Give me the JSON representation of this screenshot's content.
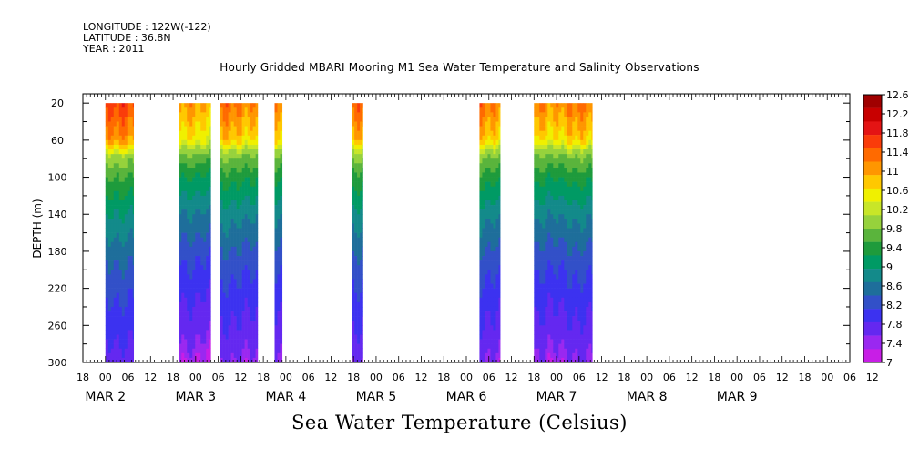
{
  "header": {
    "lines": [
      "LONGITUDE : 122W(-122)",
      "LATITUDE : 36.8N",
      "YEAR : 2011"
    ],
    "title": "Hourly Gridded MBARI Mooring M1 Sea Water Temperature and Salinity Observations"
  },
  "chart_data": {
    "type": "heatmap",
    "title": "Hourly Gridded MBARI Mooring M1 Sea Water Temperature and Salinity Observations",
    "xlabel": "",
    "ylabel": "DEPTH (m)",
    "colorbar_label": "Sea Water Temperature (Celsius)",
    "x_unit": "hours since 2011-03-01 18:00",
    "xlim": [
      0,
      204
    ],
    "ylim": [
      300,
      10
    ],
    "y_ticks": [
      20,
      60,
      100,
      140,
      180,
      220,
      260,
      300
    ],
    "x_hour_labels": [
      "18",
      "00",
      "06",
      "12",
      "18",
      "00",
      "06",
      "12",
      "18",
      "00",
      "06",
      "12",
      "18",
      "00",
      "06",
      "12",
      "18",
      "00",
      "06",
      "12",
      "18",
      "00",
      "06",
      "12",
      "18",
      "00",
      "06",
      "12",
      "18",
      "00",
      "06",
      "12",
      "18",
      "00",
      "06",
      "12"
    ],
    "x_day_labels": [
      {
        "hour": 6,
        "text": "MAR  2"
      },
      {
        "hour": 30,
        "text": "MAR  3"
      },
      {
        "hour": 54,
        "text": "MAR  4"
      },
      {
        "hour": 78,
        "text": "MAR  5"
      },
      {
        "hour": 102,
        "text": "MAR  6"
      },
      {
        "hour": 126,
        "text": "MAR  7"
      },
      {
        "hour": 150,
        "text": "MAR  8"
      },
      {
        "hour": 174,
        "text": "MAR  9"
      }
    ],
    "colorbar_levels": [
      "12.6",
      "12.2",
      "11.8",
      "11.4",
      "11",
      "10.6",
      "10.2",
      "9.8",
      "9.4",
      "9",
      "8.6",
      "8.2",
      "7.8",
      "7.4",
      "7"
    ],
    "colorbar_colors": [
      "#a00000",
      "#c80000",
      "#e41414",
      "#fa3c0a",
      "#ff6a00",
      "#ff9600",
      "#ffc800",
      "#f0f000",
      "#c8e628",
      "#96d23c",
      "#5ab43c",
      "#1e9b3c",
      "#009a64",
      "#138a8a",
      "#1e6e9b",
      "#3250c8",
      "#3c32f0",
      "#6428f0",
      "#9a28f0",
      "#c81ee6"
    ],
    "color_levels_celsius": [
      12.6,
      12.4,
      12.2,
      12.0,
      11.8,
      11.6,
      11.4,
      11.2,
      11.0,
      10.6,
      10.2,
      9.8,
      9.4,
      9.0,
      8.6,
      8.2,
      7.8,
      7.4,
      7.2,
      7.0
    ],
    "temperature_profile": {
      "depths": [
        20,
        40,
        60,
        70,
        80,
        100,
        120,
        140,
        160,
        180,
        200,
        220,
        240,
        260,
        280,
        300
      ],
      "temps": [
        11.8,
        11.6,
        11.4,
        11.0,
        10.5,
        9.9,
        9.5,
        9.1,
        8.8,
        8.5,
        8.25,
        8.05,
        7.85,
        7.7,
        7.5,
        7.3
      ]
    },
    "segments": [
      {
        "start": 6,
        "end": 13.5,
        "offset": 0.25
      },
      {
        "start": 25.5,
        "end": 34,
        "offset": -0.15
      },
      {
        "start": 36.5,
        "end": 46.5,
        "offset": 0.05
      },
      {
        "start": 51,
        "end": 53,
        "offset": -0.05
      },
      {
        "start": 71.5,
        "end": 74.5,
        "offset": 0.1
      },
      {
        "start": 105.5,
        "end": 111,
        "offset": 0.05
      },
      {
        "start": 120,
        "end": 135.5,
        "offset": 0
      }
    ]
  }
}
